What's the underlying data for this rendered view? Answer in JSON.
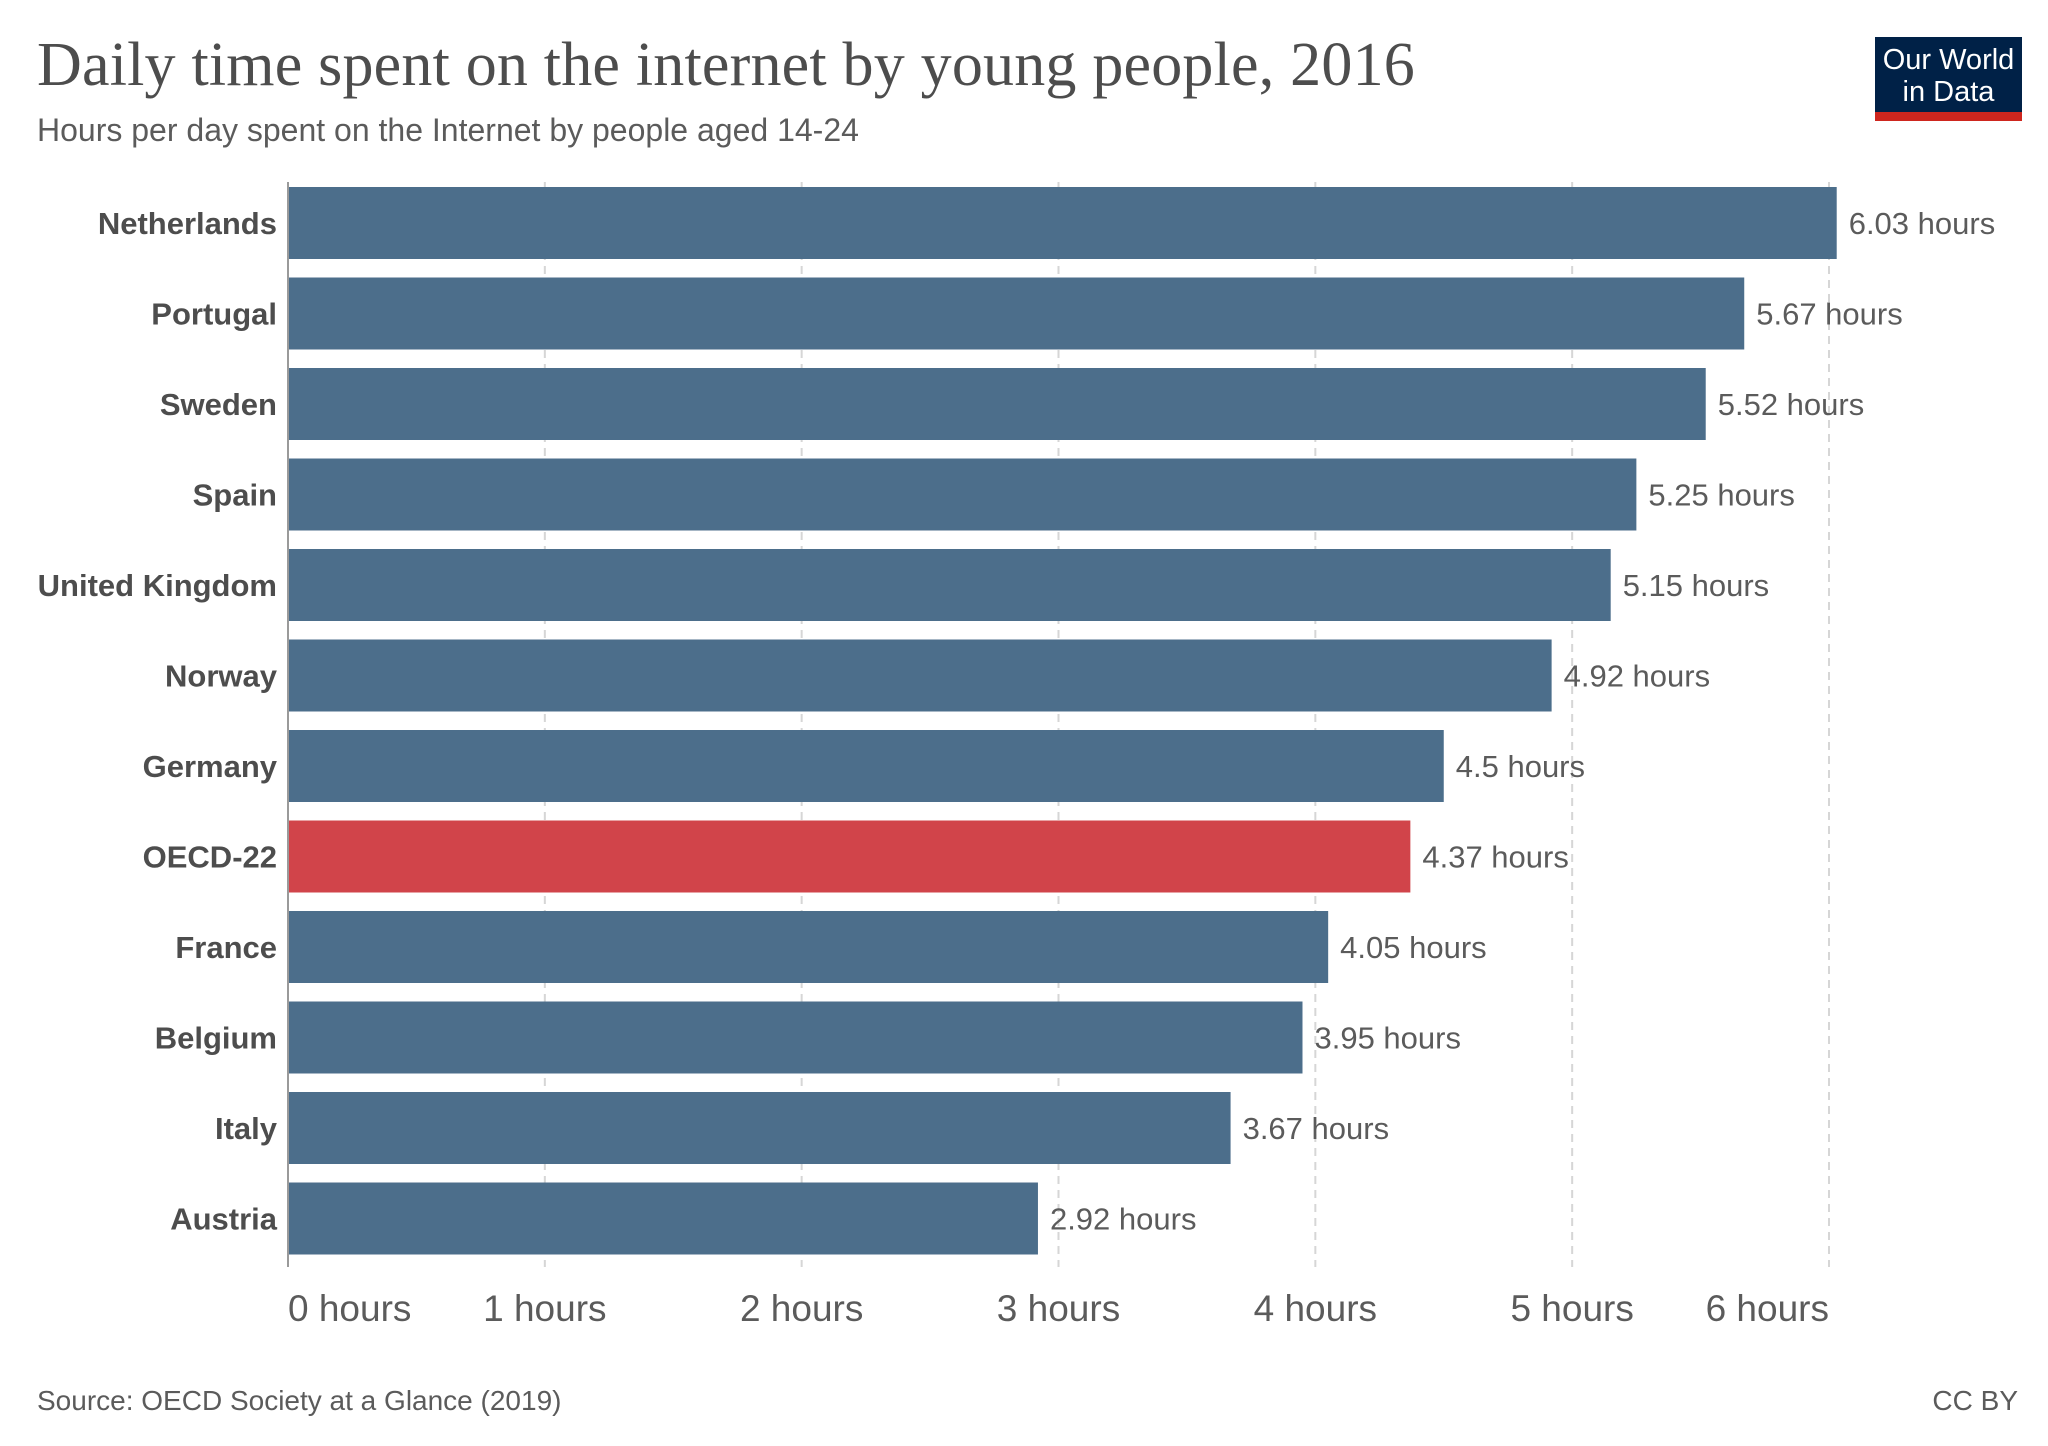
{
  "header": {
    "title": "Daily time spent on the internet by young people, 2016",
    "subtitle": "Hours per day spent on the Internet by people aged 14-24"
  },
  "logo": {
    "line1": "Our World",
    "line2": "in Data",
    "background": "#002147",
    "accent": "#ce261e"
  },
  "footer": {
    "source": "Source: OECD Society at a Glance (2019)",
    "license": "CC BY"
  },
  "chart_data": {
    "type": "bar",
    "orientation": "horizontal",
    "categories": [
      "Netherlands",
      "Portugal",
      "Sweden",
      "Spain",
      "United Kingdom",
      "Norway",
      "Germany",
      "OECD-22",
      "France",
      "Belgium",
      "Italy",
      "Austria"
    ],
    "values": [
      6.03,
      5.67,
      5.52,
      5.25,
      5.15,
      4.92,
      4.5,
      4.37,
      4.05,
      3.95,
      3.67,
      2.92
    ],
    "value_labels": [
      "6.03 hours",
      "5.67 hours",
      "5.52 hours",
      "5.25 hours",
      "5.15 hours",
      "4.92 hours",
      "4.5 hours",
      "4.37 hours",
      "4.05 hours",
      "3.95 hours",
      "3.67 hours",
      "2.92 hours"
    ],
    "highlight": "OECD-22",
    "xlim": [
      0,
      6
    ],
    "xticks": [
      0,
      1,
      2,
      3,
      4,
      5,
      6
    ],
    "xtick_labels": [
      "0 hours",
      "1 hours",
      "2 hours",
      "3 hours",
      "4 hours",
      "5 hours",
      "6 hours"
    ],
    "grid": "vertical dashed",
    "legend": "none",
    "colors": {
      "bar": "#4c6e8b",
      "highlight": "#d1444a",
      "grid": "#d6d6d6",
      "axis": "#9a9a9a"
    }
  }
}
